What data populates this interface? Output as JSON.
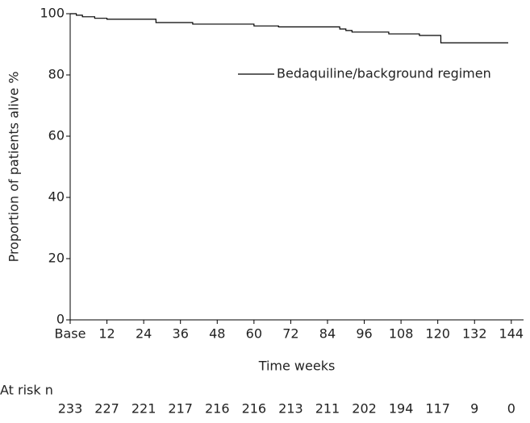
{
  "chart_data": {
    "type": "step",
    "xlabel": "Time weeks",
    "ylabel": "Proportion of patients alive %",
    "x": [
      0,
      2,
      4,
      8,
      12,
      28,
      40,
      60,
      68,
      88,
      90,
      92,
      104,
      114,
      121,
      143
    ],
    "series": [
      {
        "name": "Bedaquiline/background regimen",
        "color": "#000000",
        "values": [
          100,
          99.5,
          99,
          98.5,
          98.2,
          97.1,
          96.6,
          96,
          95.7,
          95,
          94.5,
          94,
          93.4,
          92.9,
          90.5,
          90.5
        ]
      }
    ],
    "xlim": [
      0,
      148
    ],
    "xticks": [
      {
        "value": 0,
        "label": "Base"
      },
      12,
      24,
      36,
      48,
      60,
      72,
      84,
      96,
      108,
      120,
      132,
      144
    ],
    "ylim": [
      0,
      100
    ],
    "yticks": [
      0,
      20,
      40,
      60,
      80,
      100
    ],
    "at_risk": {
      "label": "At risk n",
      "values": [
        233,
        227,
        221,
        217,
        216,
        216,
        213,
        211,
        202,
        194,
        117,
        9,
        0
      ]
    }
  }
}
